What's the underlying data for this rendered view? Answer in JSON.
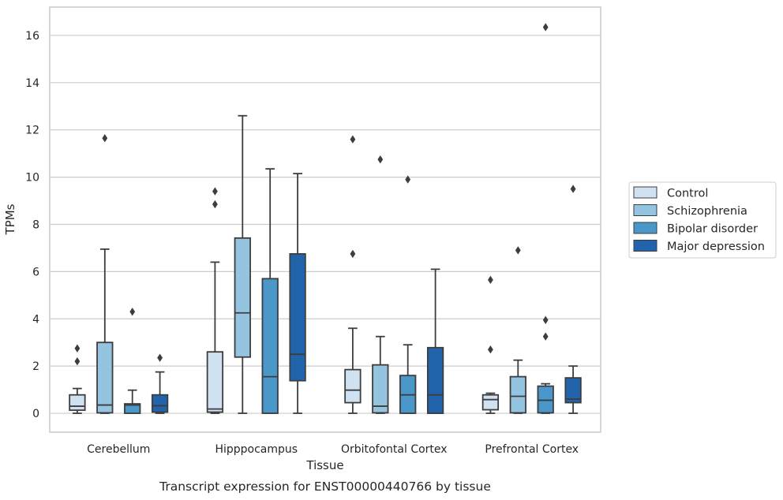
{
  "caption": "Transcript expression for ENST00000440766 by tissue",
  "chart_data": {
    "type": "boxplot",
    "xlabel": "Tissue",
    "ylabel": "TPMs",
    "ylim": [
      -0.8,
      17.2
    ],
    "yticks": [
      0,
      2,
      4,
      6,
      8,
      10,
      12,
      14,
      16
    ],
    "grid": "horizontal",
    "legend_position": "right",
    "categories": [
      "Cerebellum",
      "Hipppocampus",
      "Orbitofontal Cortex",
      "Prefrontal Cortex"
    ],
    "series": [
      {
        "name": "Control",
        "color": "#d0e1f2",
        "boxes": [
          {
            "whislo": 0.0,
            "q1": 0.13,
            "med": 0.3,
            "q3": 0.78,
            "whishi": 1.05,
            "fliers": [
              2.2,
              2.75
            ]
          },
          {
            "whislo": 0.0,
            "q1": 0.05,
            "med": 0.18,
            "q3": 2.6,
            "whishi": 6.4,
            "fliers": [
              8.85,
              9.4
            ]
          },
          {
            "whislo": 0.0,
            "q1": 0.45,
            "med": 0.98,
            "q3": 1.85,
            "whishi": 3.6,
            "fliers": [
              6.75,
              11.6
            ]
          },
          {
            "whislo": 0.0,
            "q1": 0.15,
            "med": 0.58,
            "q3": 0.78,
            "whishi": 0.85,
            "fliers": [
              2.7,
              5.65
            ]
          }
        ]
      },
      {
        "name": "Schizophrenia",
        "color": "#94c4df",
        "boxes": [
          {
            "whislo": 0.0,
            "q1": 0.02,
            "med": 0.35,
            "q3": 3.0,
            "whishi": 6.95,
            "fliers": [
              11.65
            ]
          },
          {
            "whislo": 0.0,
            "q1": 2.38,
            "med": 4.25,
            "q3": 7.42,
            "whishi": 12.6,
            "fliers": []
          },
          {
            "whislo": 0.0,
            "q1": 0.02,
            "med": 0.3,
            "q3": 2.05,
            "whishi": 3.25,
            "fliers": [
              10.75
            ]
          },
          {
            "whislo": 0.0,
            "q1": 0.02,
            "med": 0.72,
            "q3": 1.55,
            "whishi": 2.25,
            "fliers": [
              6.9
            ]
          }
        ]
      },
      {
        "name": "Bipolar disorder",
        "color": "#4a98c9",
        "boxes": [
          {
            "whislo": 0.0,
            "q1": 0.0,
            "med": 0.35,
            "q3": 0.4,
            "whishi": 0.98,
            "fliers": [
              4.3
            ]
          },
          {
            "whislo": 0.0,
            "q1": 0.0,
            "med": 1.55,
            "q3": 5.7,
            "whishi": 10.35,
            "fliers": []
          },
          {
            "whislo": 0.0,
            "q1": 0.0,
            "med": 0.78,
            "q3": 1.6,
            "whishi": 2.9,
            "fliers": [
              9.9
            ]
          },
          {
            "whislo": 0.0,
            "q1": 0.02,
            "med": 0.55,
            "q3": 1.15,
            "whishi": 1.25,
            "fliers": [
              3.25,
              3.95,
              16.35
            ]
          }
        ]
      },
      {
        "name": "Major depression",
        "color": "#2264ab",
        "boxes": [
          {
            "whislo": 0.0,
            "q1": 0.05,
            "med": 0.32,
            "q3": 0.78,
            "whishi": 1.75,
            "fliers": [
              2.35
            ]
          },
          {
            "whislo": 0.0,
            "q1": 1.38,
            "med": 2.5,
            "q3": 6.75,
            "whishi": 10.15,
            "fliers": []
          },
          {
            "whislo": 0.0,
            "q1": 0.0,
            "med": 0.78,
            "q3": 2.78,
            "whishi": 6.1,
            "fliers": []
          },
          {
            "whislo": 0.0,
            "q1": 0.45,
            "med": 0.6,
            "q3": 1.5,
            "whishi": 2.0,
            "fliers": [
              9.5
            ]
          }
        ]
      }
    ]
  }
}
